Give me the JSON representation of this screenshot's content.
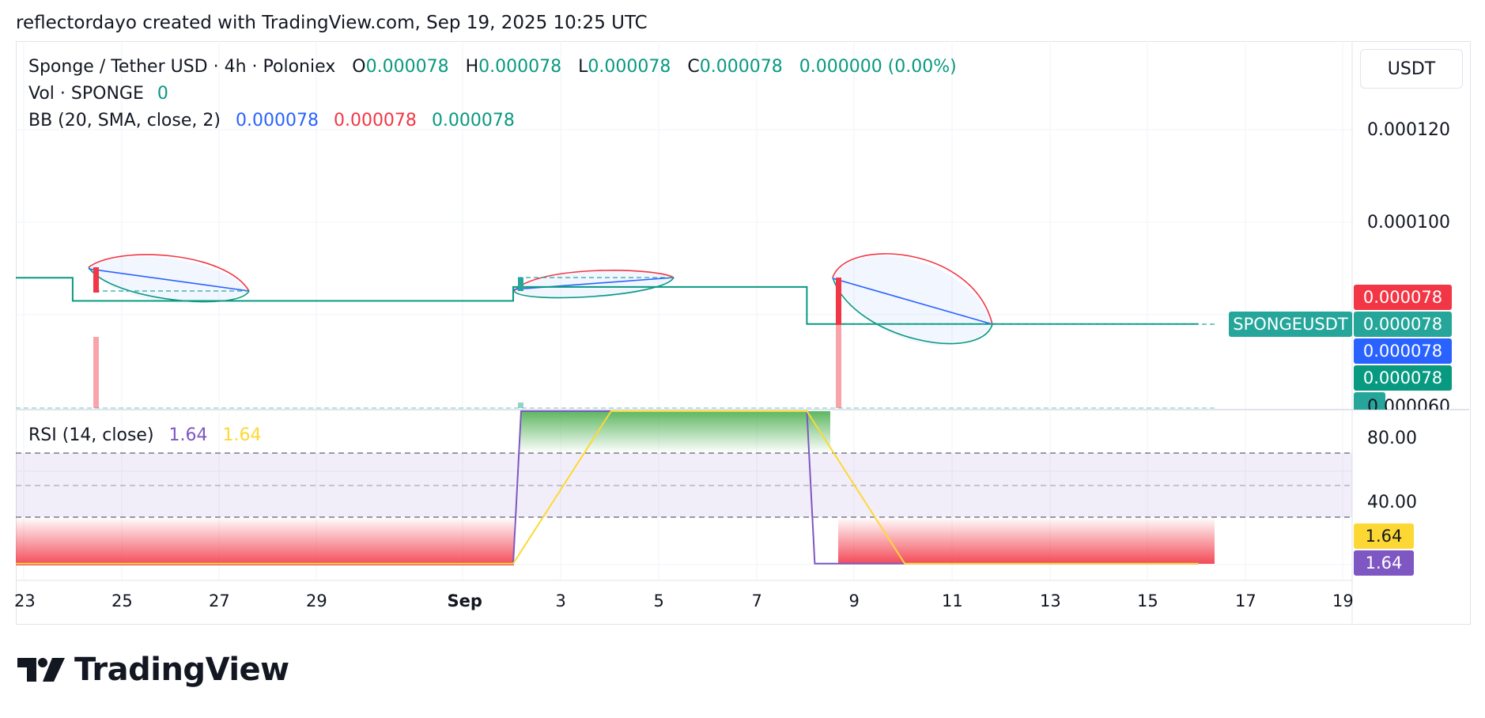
{
  "header": {
    "text": "reflectordayo created with TradingView.com, Sep 19, 2025 10:25 UTC"
  },
  "legend": {
    "symbol": "Sponge / Tether USD · 4h · Poloniex",
    "o_label": "O",
    "o_value": "0.000078",
    "h_label": "H",
    "h_value": "0.000078",
    "l_label": "L",
    "l_value": "0.000078",
    "c_label": "C",
    "c_value": "0.000078",
    "change": "0.000000 (0.00%)",
    "vol_label": "Vol · SPONGE",
    "vol_value": "0",
    "bb_label": "BB (20, SMA, close, 2)",
    "bb_basis": "0.000078",
    "bb_upper": "0.000078",
    "bb_lower": "0.000078",
    "rsi_label": "RSI (14, close)",
    "rsi_value": "1.64",
    "rsi_ma_value": "1.64"
  },
  "currency_button": "USDT",
  "price_axis": {
    "ticks": [
      "0.000120",
      "0.000100",
      "0.000060"
    ]
  },
  "price_tags": {
    "upper": "0.000078",
    "symbol": "SPONGEUSDT",
    "last": "0.000078",
    "basis": "0.000078",
    "lower": "0.000078"
  },
  "rsi_axis": {
    "ticks": [
      "80.00",
      "40.00"
    ]
  },
  "rsi_tags": {
    "ma": "1.64",
    "rsi": "1.64"
  },
  "time_axis": {
    "ticks": [
      "23",
      "25",
      "27",
      "29",
      "Sep",
      "3",
      "5",
      "7",
      "9",
      "11",
      "13",
      "15",
      "17",
      "19"
    ]
  },
  "logo": {
    "text": "TradingView"
  },
  "colors": {
    "up": "#26a69a",
    "down": "#f23645",
    "bb_basis": "#2962ff",
    "bb_upper": "#f23645",
    "bb_lower": "#089981",
    "rsi": "#7e57c2",
    "rsi_ma": "#fdd835"
  },
  "chart_data": {
    "type": "line",
    "symbol": "SPONGEUSDT",
    "interval": "4h",
    "price_series": {
      "name": "Close",
      "x": [
        "2025-08-22",
        "2025-08-24",
        "2025-08-24",
        "2025-09-02",
        "2025-09-02",
        "2025-09-08",
        "2025-09-08",
        "2025-09-16"
      ],
      "y": [
        8.8e-05,
        8.8e-05,
        8.3e-05,
        8.3e-05,
        8.6e-05,
        8.6e-05,
        7.8e-05,
        7.8e-05
      ]
    },
    "price_ylim": [
      6e-05,
      0.00013
    ],
    "rsi_series": {
      "x": [
        "2025-08-22",
        "2025-09-02",
        "2025-09-02",
        "2025-09-08",
        "2025-09-08",
        "2025-09-16"
      ],
      "values": [
        1.64,
        1.64,
        100,
        100,
        1.64,
        1.64
      ]
    },
    "rsi_ma_series": {
      "x": [
        "2025-08-22",
        "2025-09-02",
        "2025-09-04",
        "2025-09-08",
        "2025-09-10",
        "2025-09-16"
      ],
      "values": [
        1.64,
        1.64,
        100,
        100,
        1.64,
        1.64
      ]
    },
    "rsi_bands": [
      70,
      50,
      30
    ],
    "rsi_ylim": [
      0,
      100
    ]
  }
}
